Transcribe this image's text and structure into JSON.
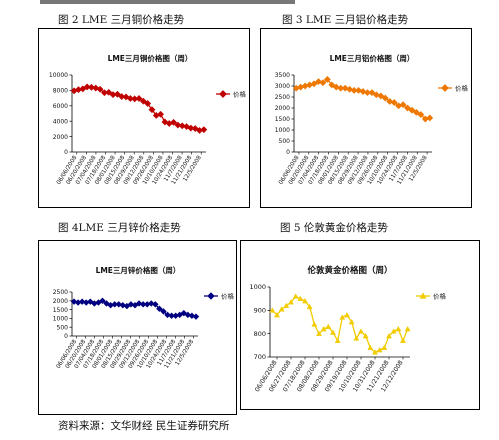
{
  "captions": {
    "fig2": "图 2   LME 三月铜价格走势",
    "fig3": "图 3   LME 三月铝价格走势",
    "fig4": "图 4LME 三月锌价格走势",
    "fig5": "图 5   伦敦黄金价格走势"
  },
  "source": "资料来源：文华财经 民生证券研究所",
  "chart_data": [
    {
      "id": "copper",
      "type": "line",
      "title": "LME三月铜价格图（周）",
      "legend": "价格",
      "legend_position": "right",
      "color": "#c00000",
      "ylim": [
        0,
        10000
      ],
      "yticks": [
        "0",
        "2000",
        "4000",
        "6000",
        "8000",
        "10000"
      ],
      "xticks": [
        "06/06/2008",
        "06/20/2008",
        "07/04/2008",
        "07/18/2008",
        "08/01/2008",
        "08/15/2008",
        "08/29/2008",
        "09/12/2008",
        "09/26/2008",
        "10/10/2008",
        "10/24/2008",
        "11/7/2008",
        "11/21/2008",
        "12/5/2008"
      ],
      "values": [
        7950,
        8100,
        8200,
        8450,
        8400,
        8300,
        8150,
        7700,
        7750,
        7450,
        7500,
        7200,
        7150,
        6950,
        6900,
        6950,
        6600,
        6300,
        5500,
        4750,
        4900,
        3900,
        3700,
        3850,
        3500,
        3400,
        3300,
        3100,
        3050,
        2800,
        2900
      ]
    },
    {
      "id": "aluminum",
      "type": "line",
      "title": "LME三月铝价格图（周）",
      "legend": "价格",
      "legend_position": "right",
      "color": "#ee7700",
      "ylim": [
        0,
        3500
      ],
      "yticks": [
        "0",
        "500",
        "1000",
        "1500",
        "2000",
        "2500",
        "3000",
        "3500"
      ],
      "xticks": [
        "06/06/2008",
        "06/20/2008",
        "07/04/2008",
        "07/18/2008",
        "08/01/2008",
        "08/15/2008",
        "08/29/2008",
        "09/12/2008",
        "09/26/2008",
        "10/10/2008",
        "10/24/2008",
        "11/7/2008",
        "11/21/2008",
        "12/5/2008"
      ],
      "values": [
        2900,
        2950,
        3000,
        3050,
        3100,
        3200,
        3150,
        3300,
        3050,
        2950,
        2900,
        2900,
        2850,
        2800,
        2800,
        2750,
        2700,
        2700,
        2600,
        2550,
        2450,
        2300,
        2250,
        2100,
        2150,
        2000,
        1900,
        1800,
        1700,
        1500,
        1550
      ]
    },
    {
      "id": "zinc",
      "type": "line",
      "title": "LME三月锌价格图（周）",
      "legend": "价格",
      "legend_position": "right",
      "color": "#000080",
      "ylim": [
        0,
        2500
      ],
      "yticks": [
        "0",
        "500",
        "1000",
        "1500",
        "2000",
        "2500"
      ],
      "xticks": [
        "06/06/2008",
        "06/20/2008",
        "07/04/2008",
        "07/18/2008",
        "08/01/2008",
        "08/15/2008",
        "08/29/2008",
        "09/12/2008",
        "09/26/2008",
        "10/10/2008",
        "10/24/2008",
        "11/7/2008",
        "11/21/2008",
        "12/5/2008"
      ],
      "values": [
        1950,
        1900,
        1950,
        1900,
        1950,
        1850,
        1900,
        2000,
        1850,
        1750,
        1800,
        1800,
        1750,
        1700,
        1800,
        1750,
        1850,
        1800,
        1800,
        1850,
        1800,
        1550,
        1400,
        1200,
        1150,
        1150,
        1200,
        1300,
        1200,
        1150,
        1100
      ]
    },
    {
      "id": "gold",
      "type": "line",
      "title": "伦敦黄金价格图（周）",
      "legend": "价格",
      "legend_position": "right",
      "color": "#f2cc00",
      "ylim": [
        700,
        1000
      ],
      "yticks": [
        "700",
        "800",
        "900",
        "1000"
      ],
      "xticks": [
        "06/06/2008",
        "06/27/2008",
        "07/18/2008",
        "08/08/2008",
        "08/29/2008",
        "09/19/2008",
        "10/10/2008",
        "10/31/2008",
        "11/21/2008",
        "12/12/2008"
      ],
      "values": [
        900,
        880,
        905,
        920,
        935,
        960,
        950,
        940,
        915,
        840,
        800,
        820,
        830,
        805,
        770,
        870,
        880,
        850,
        780,
        810,
        790,
        740,
        720,
        730,
        740,
        790,
        810,
        820,
        770,
        820
      ]
    }
  ]
}
